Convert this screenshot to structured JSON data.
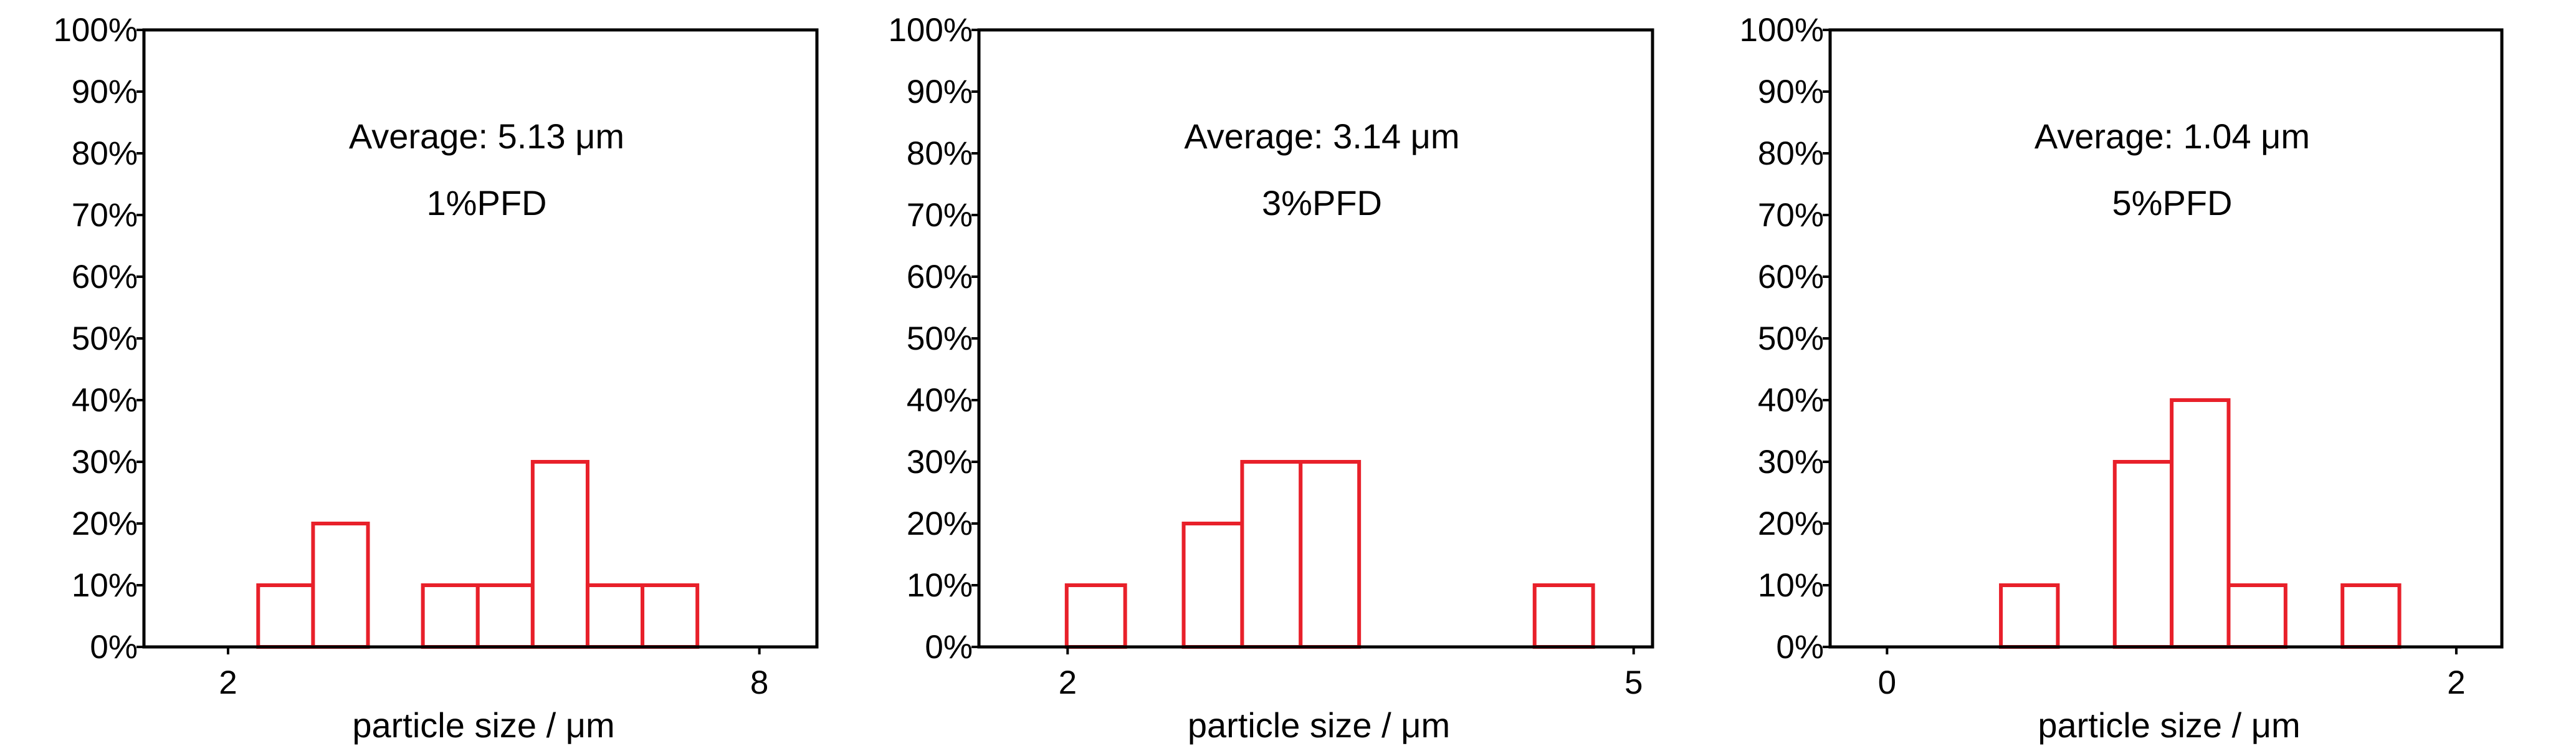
{
  "chart_data": [
    {
      "type": "bar",
      "xlabel": "particle size / μm",
      "ylabel": "",
      "ylim": [
        0,
        100
      ],
      "yticks": [
        "0%",
        "10%",
        "20%",
        "30%",
        "40%",
        "50%",
        "60%",
        "70%",
        "80%",
        "90%",
        "100%"
      ],
      "xlim": [
        1.05,
        8.65
      ],
      "xticks": [
        {
          "value": 2,
          "label": "2"
        },
        {
          "value": 8,
          "label": "8"
        }
      ],
      "bin_width": 0.62,
      "bins": [
        {
          "x": 2.65,
          "value": 10
        },
        {
          "x": 3.27,
          "value": 20
        },
        {
          "x": 4.51,
          "value": 10
        },
        {
          "x": 5.13,
          "value": 10
        },
        {
          "x": 5.75,
          "value": 30
        },
        {
          "x": 6.37,
          "value": 10
        },
        {
          "x": 6.99,
          "value": 10
        }
      ],
      "bar_color": "#e8202a",
      "annotations": [
        "Average: 5.13 μm",
        "1%PFD"
      ]
    },
    {
      "type": "bar",
      "xlabel": "particle size / μm",
      "ylabel": "",
      "ylim": [
        0,
        100
      ],
      "yticks": [
        "0%",
        "10%",
        "20%",
        "30%",
        "40%",
        "50%",
        "60%",
        "70%",
        "80%",
        "90%",
        "100%"
      ],
      "xlim": [
        1.53,
        5.1
      ],
      "xticks": [
        {
          "value": 2,
          "label": "2"
        },
        {
          "value": 5,
          "label": "5"
        }
      ],
      "bin_width": 0.31,
      "bins": [
        {
          "x": 2.15,
          "value": 10
        },
        {
          "x": 2.77,
          "value": 20
        },
        {
          "x": 3.08,
          "value": 30
        },
        {
          "x": 3.39,
          "value": 30
        },
        {
          "x": 4.63,
          "value": 10
        }
      ],
      "bar_color": "#e8202a",
      "annotations": [
        "Average: 3.14 μm",
        "3%PFD"
      ]
    },
    {
      "type": "bar",
      "xlabel": "particle size / μm",
      "ylabel": "",
      "ylim": [
        0,
        100
      ],
      "yticks": [
        "0%",
        "10%",
        "20%",
        "30%",
        "40%",
        "50%",
        "60%",
        "70%",
        "80%",
        "90%",
        "100%"
      ],
      "xlim": [
        -0.2,
        2.16
      ],
      "xticks": [
        {
          "value": 0,
          "label": "0"
        },
        {
          "value": 2,
          "label": "2"
        }
      ],
      "bin_width": 0.2,
      "bins": [
        {
          "x": 0.5,
          "value": 10
        },
        {
          "x": 0.9,
          "value": 30
        },
        {
          "x": 1.1,
          "value": 40
        },
        {
          "x": 1.3,
          "value": 10
        },
        {
          "x": 1.7,
          "value": 10
        }
      ],
      "bar_color": "#e8202a",
      "annotations": [
        "Average: 1.04 μm",
        "5%PFD"
      ]
    }
  ]
}
